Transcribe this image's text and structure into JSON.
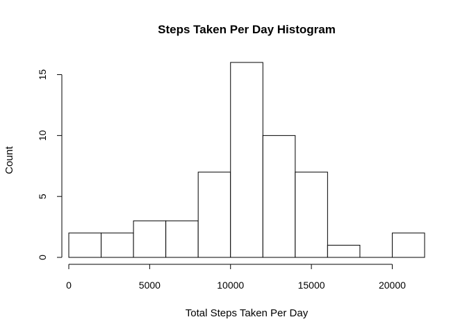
{
  "chart_data": {
    "type": "bar",
    "title": "Steps Taken Per Day Histogram",
    "xlabel": "Total Steps Taken Per Day",
    "ylabel": "Count",
    "bins": [
      {
        "start": 0,
        "end": 2000,
        "count": 2
      },
      {
        "start": 2000,
        "end": 4000,
        "count": 2
      },
      {
        "start": 4000,
        "end": 6000,
        "count": 3
      },
      {
        "start": 6000,
        "end": 8000,
        "count": 3
      },
      {
        "start": 8000,
        "end": 10000,
        "count": 7
      },
      {
        "start": 10000,
        "end": 12000,
        "count": 16
      },
      {
        "start": 12000,
        "end": 14000,
        "count": 10
      },
      {
        "start": 14000,
        "end": 16000,
        "count": 7
      },
      {
        "start": 16000,
        "end": 18000,
        "count": 1
      },
      {
        "start": 18000,
        "end": 20000,
        "count": 0
      },
      {
        "start": 20000,
        "end": 22000,
        "count": 2
      }
    ],
    "xticks": [
      "0",
      "5000",
      "10000",
      "15000",
      "20000"
    ],
    "yticks": [
      "0",
      "5",
      "10",
      "15"
    ],
    "xlim": [
      0,
      22000
    ],
    "ylim": [
      0,
      16
    ],
    "grid": false
  }
}
